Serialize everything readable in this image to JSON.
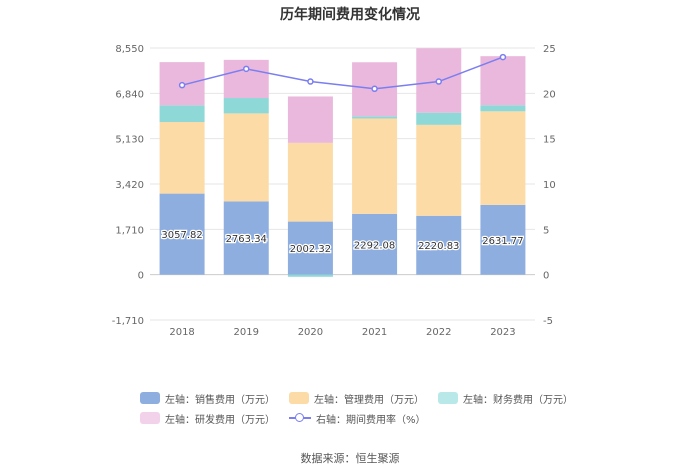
{
  "title": "历年期间费用变化情况",
  "source": "数据来源：恒生聚源",
  "chart_data": {
    "type": "bar",
    "stacked": true,
    "categories": [
      "2018",
      "2019",
      "2020",
      "2021",
      "2022",
      "2023"
    ],
    "series": [
      {
        "name": "左轴：销售费用（万元）",
        "axis": "left",
        "color": "#8eaee0",
        "values": [
          3057.82,
          2763.34,
          2002.32,
          2292.08,
          2220.83,
          2631.77
        ],
        "labels": [
          "3057.82",
          "2763.34",
          "2002.32",
          "2292.08",
          "2220.83",
          "2631.77"
        ]
      },
      {
        "name": "左轴：管理费用（万元）",
        "axis": "left",
        "color": "#fcdba6",
        "values": [
          2700,
          3320,
          2970,
          3600,
          3430,
          3530
        ]
      },
      {
        "name": "左轴：财务费用（万元）",
        "axis": "left",
        "color": "#8ed8d8",
        "values": [
          630,
          580,
          -80,
          80,
          460,
          230
        ]
      },
      {
        "name": "左轴：研发费用（万元）",
        "axis": "left",
        "color": "#eab8dc",
        "values": [
          1630,
          1440,
          1750,
          2040,
          2430,
          1850
        ]
      },
      {
        "name": "右轴：期间费用率（%）",
        "axis": "right",
        "type": "line",
        "color": "#7a7ef0",
        "values": [
          20.9,
          22.7,
          21.3,
          20.5,
          21.3,
          24.0
        ]
      }
    ],
    "left_axis": {
      "ylim": [
        -1710,
        8550
      ],
      "ticks": [
        -1710,
        0,
        1710,
        3420,
        5130,
        6840,
        8550
      ],
      "tick_labels": [
        "-1,710",
        "0",
        "1,710",
        "3,420",
        "5,130",
        "6,840",
        "8,550"
      ]
    },
    "right_axis": {
      "ylim": [
        -5,
        25
      ],
      "ticks": [
        -5,
        0,
        5,
        10,
        15,
        20,
        25
      ],
      "tick_labels": [
        "-5",
        "0",
        "5",
        "10",
        "15",
        "20",
        "25"
      ]
    },
    "grid": true,
    "legend_position": "bottom"
  }
}
